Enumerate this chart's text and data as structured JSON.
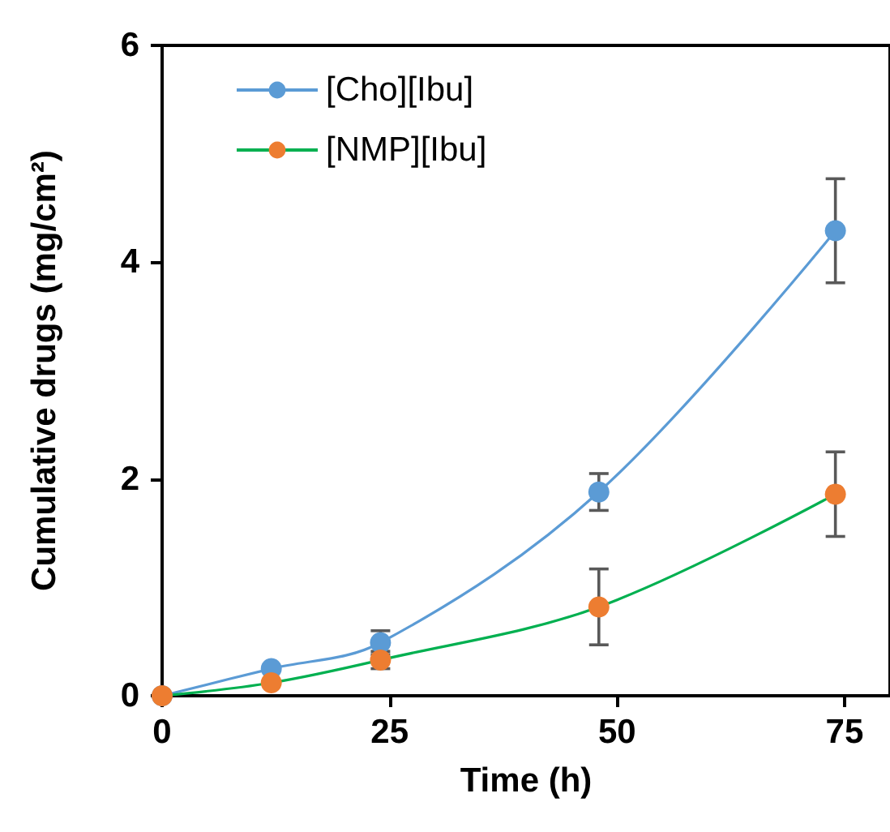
{
  "chart_data": {
    "type": "line",
    "xlabel": "Time (h)",
    "ylabel": "Cumulative drugs (mg/cm²)",
    "x": [
      0,
      12,
      24,
      48,
      74
    ],
    "series": [
      {
        "name": "[Cho][Ibu]",
        "color": "#5b9bd5",
        "values": [
          0,
          0.25,
          0.49,
          1.88,
          4.29
        ],
        "errors": [
          null,
          null,
          0.11,
          0.17,
          0.48
        ]
      },
      {
        "name": "[NMP][Ibu]",
        "color": "#00b050",
        "colors": [
          "#ed7d31",
          "#ed7d31",
          "#ed7d31",
          "#ed7d31",
          "#ed7d31"
        ],
        "values": [
          0,
          0.12,
          0.33,
          0.82,
          1.86
        ],
        "errors": [
          null,
          null,
          0.08,
          0.35,
          0.39
        ]
      }
    ],
    "xlim": [
      0,
      80
    ],
    "xticks": [
      0,
      25,
      50,
      75
    ],
    "ylim": [
      0,
      6
    ],
    "yticks": [
      0,
      2,
      4,
      6
    ],
    "grid": false,
    "legend": "top left",
    "marker": "circle",
    "line_style": "solid"
  }
}
